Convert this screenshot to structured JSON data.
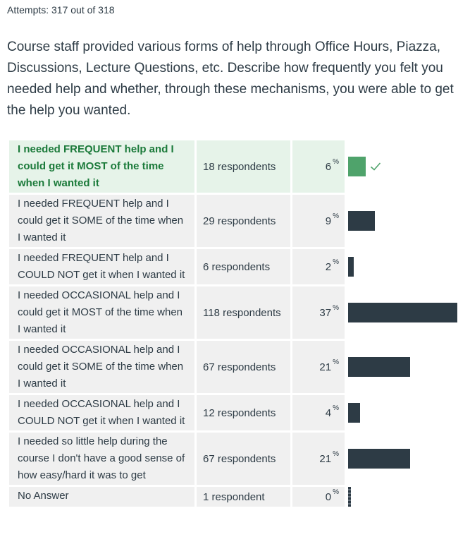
{
  "attempts_text": "Attempts: 317 out of 318",
  "question_text": "Course staff provided various forms of help through Office Hours, Piazza, Discussions, Lecture Questions, etc. Describe how frequently you felt you needed help and whether, through these mechanisms, you were able to get the help you wanted.",
  "percent_sign": "%",
  "colors": {
    "correct_bg": "#e6f3e9",
    "correct_text": "#1b7a3a",
    "correct_bar": "#4fa36b",
    "bar": "#2d3b45",
    "cell_bg": "#f0f0f0"
  },
  "answers": [
    {
      "label": "I needed FREQUENT help and I could get it MOST of the time when I wanted it",
      "respondents": "18 respondents",
      "percent": "6",
      "percent_value": 6,
      "correct": true,
      "icon": "check-icon"
    },
    {
      "label": "I needed FREQUENT help and I could get it SOME of the time when I wanted it",
      "respondents": "29 respondents",
      "percent": "9",
      "percent_value": 9,
      "correct": false
    },
    {
      "label": "I needed FREQUENT help and I COULD NOT get it when I wanted it",
      "respondents": "6 respondents",
      "percent": "2",
      "percent_value": 2,
      "correct": false
    },
    {
      "label": "I needed OCCASIONAL help and I could get it MOST of the time when I wanted it",
      "respondents": "118 respondents",
      "percent": "37",
      "percent_value": 37,
      "correct": false
    },
    {
      "label": "I needed OCCASIONAL help and I could get it SOME of the time when I wanted it",
      "respondents": "67 respondents",
      "percent": "21",
      "percent_value": 21,
      "correct": false
    },
    {
      "label": "I needed OCCASIONAL help and I COULD NOT get it when I wanted it",
      "respondents": "12 respondents",
      "percent": "4",
      "percent_value": 4,
      "correct": false
    },
    {
      "label": "I needed so little help during the course I don't have a good sense of how easy/hard it was to get",
      "respondents": "67 respondents",
      "percent": "21",
      "percent_value": 21,
      "correct": false
    },
    {
      "label": "No Answer",
      "respondents": "1 respondent",
      "percent": "0",
      "percent_value": 0,
      "correct": false
    }
  ]
}
